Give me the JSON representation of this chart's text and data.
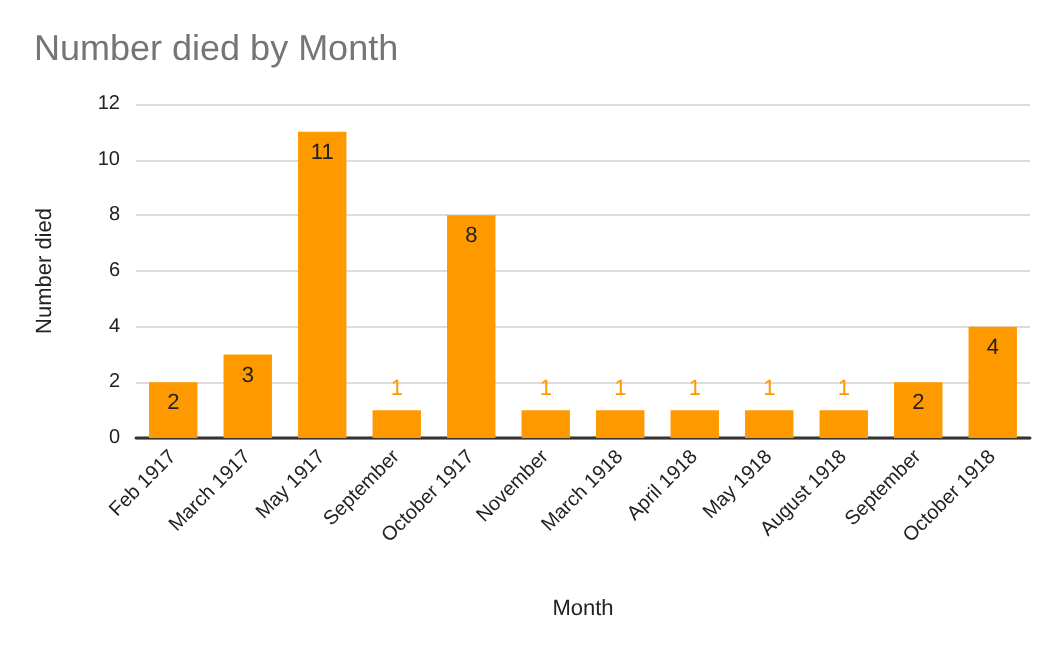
{
  "chart_data": {
    "type": "bar",
    "title": "Number died by Month",
    "xlabel": "Month",
    "ylabel": "Number died",
    "categories": [
      "Feb 1917",
      "March 1917",
      "May 1917",
      "September",
      "October 1917",
      "November",
      "March 1918",
      "April 1918",
      "May 1918",
      "August 1918",
      "September",
      "October 1918"
    ],
    "values": [
      2,
      3,
      11,
      1,
      8,
      1,
      1,
      1,
      1,
      1,
      2,
      4
    ],
    "color": "#ff9900",
    "ylim": [
      0,
      12
    ],
    "yticks": [
      0,
      2,
      4,
      6,
      8,
      10,
      12
    ],
    "grid": "y",
    "data_labels": true
  }
}
